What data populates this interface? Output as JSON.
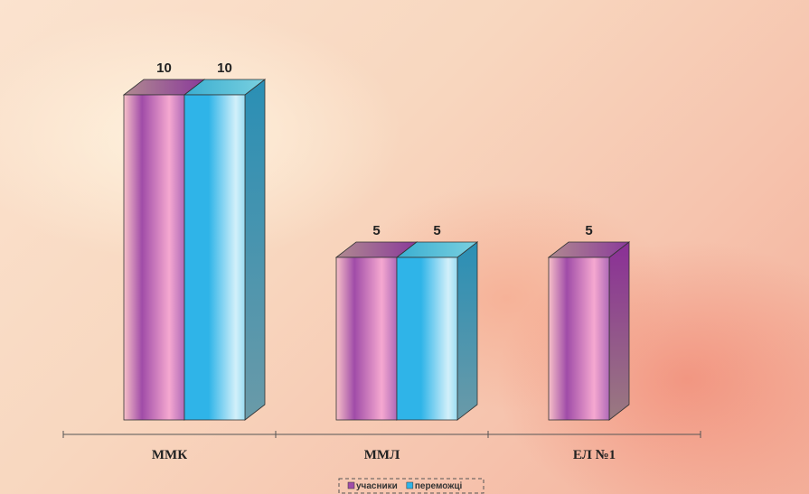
{
  "chart_data": {
    "type": "bar",
    "categories": [
      "ММК",
      "ММЛ",
      "ЕЛ №1"
    ],
    "series": [
      {
        "name": "учасники",
        "color": "#a04ca8",
        "values": [
          10,
          5,
          5
        ]
      },
      {
        "name": "переможці",
        "color": "#2fb4e8",
        "values": [
          10,
          5,
          null
        ]
      }
    ],
    "legend": "bottom"
  }
}
